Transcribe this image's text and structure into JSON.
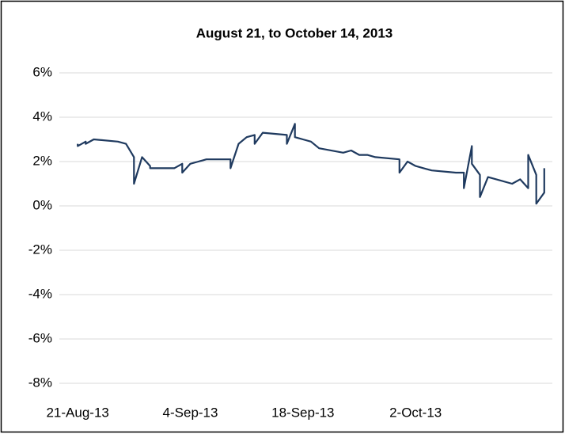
{
  "chart_data": {
    "type": "line",
    "title": "August 21, to October 14, 2013",
    "x": [
      "2013-08-21",
      "2013-08-21",
      "2013-08-22",
      "2013-08-22",
      "2013-08-23",
      "2013-08-26",
      "2013-08-27",
      "2013-08-28",
      "2013-08-28",
      "2013-08-29",
      "2013-08-30",
      "2013-08-30",
      "2013-09-02",
      "2013-09-03",
      "2013-09-03",
      "2013-09-04",
      "2013-09-05",
      "2013-09-06",
      "2013-09-09",
      "2013-09-09",
      "2013-09-10",
      "2013-09-11",
      "2013-09-12",
      "2013-09-12",
      "2013-09-13",
      "2013-09-16",
      "2013-09-16",
      "2013-09-17",
      "2013-09-17",
      "2013-09-18",
      "2013-09-19",
      "2013-09-20",
      "2013-09-23",
      "2013-09-24",
      "2013-09-25",
      "2013-09-26",
      "2013-09-27",
      "2013-09-30",
      "2013-09-30",
      "2013-10-01",
      "2013-10-02",
      "2013-10-03",
      "2013-10-04",
      "2013-10-07",
      "2013-10-08",
      "2013-10-08",
      "2013-10-09",
      "2013-10-09",
      "2013-10-10",
      "2013-10-10",
      "2013-10-11",
      "2013-10-14",
      "2013-10-15",
      "2013-10-16",
      "2013-10-16",
      "2013-10-17",
      "2013-10-17",
      "2013-10-18",
      "2013-10-18"
    ],
    "values": [
      2.8,
      2.7,
      2.9,
      2.8,
      3.0,
      2.9,
      2.8,
      2.2,
      1.0,
      2.2,
      1.8,
      1.7,
      1.7,
      1.9,
      1.5,
      1.9,
      2.0,
      2.1,
      2.1,
      1.7,
      2.8,
      3.1,
      3.2,
      2.8,
      3.3,
      3.2,
      2.8,
      3.7,
      3.1,
      3.0,
      2.9,
      2.6,
      2.4,
      2.5,
      2.3,
      2.3,
      2.2,
      2.1,
      1.5,
      2.0,
      1.8,
      1.7,
      1.6,
      1.5,
      1.5,
      0.8,
      2.7,
      1.9,
      1.4,
      0.4,
      1.3,
      1.0,
      1.2,
      0.8,
      2.3,
      1.4,
      0.1,
      0.6,
      1.7
    ],
    "color": "#1f3a5f",
    "xlim": [
      "2013-08-20",
      "2013-10-19"
    ],
    "xticks": [
      {
        "value": "2013-08-21",
        "label": "21-Aug-13"
      },
      {
        "value": "2013-09-04",
        "label": "4-Sep-13"
      },
      {
        "value": "2013-09-18",
        "label": "18-Sep-13"
      },
      {
        "value": "2013-10-02",
        "label": "2-Oct-13"
      }
    ],
    "ylim": [
      -8,
      6
    ],
    "yticks": [
      {
        "value": -8,
        "label": "-8%"
      },
      {
        "value": -6,
        "label": "-6%"
      },
      {
        "value": -4,
        "label": "-4%"
      },
      {
        "value": -2,
        "label": "-2%"
      },
      {
        "value": 0,
        "label": "0%"
      },
      {
        "value": 2,
        "label": "2%"
      },
      {
        "value": 4,
        "label": "4%"
      },
      {
        "value": 6,
        "label": "6%"
      }
    ],
    "grid": true
  }
}
